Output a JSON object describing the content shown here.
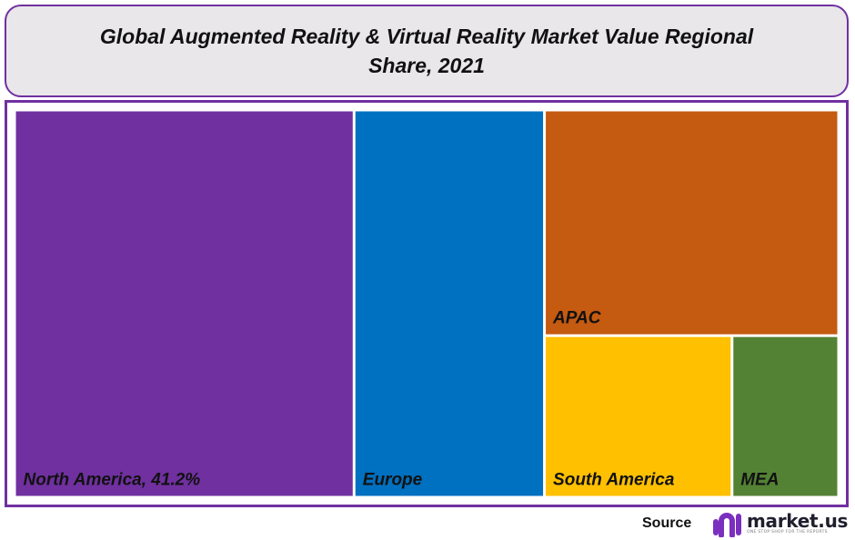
{
  "title": {
    "line1": "Global Augmented Reality & Virtual Reality  Market Value Regional",
    "line2": "Share, 2021"
  },
  "chart_data": {
    "type": "treemap",
    "title": "Global Augmented Reality & Virtual Reality  Market Value Regional Share, 2021",
    "unit": "%",
    "items": [
      {
        "name": "North America",
        "label": "North America, 41.2%",
        "value": 41.2,
        "color": "#7030a0"
      },
      {
        "name": "Europe",
        "label": "Europe",
        "value": 23.1,
        "color": "#0070c0"
      },
      {
        "name": "APAC",
        "label": "APAC",
        "value": 20.8,
        "color": "#c55a11"
      },
      {
        "name": "South America",
        "label": "South America",
        "value": 9.5,
        "color": "#ffc000"
      },
      {
        "name": "MEA",
        "label": "MEA",
        "value": 5.4,
        "color": "#548235"
      }
    ]
  },
  "footer": {
    "source_label": "Source",
    "brand": "market.us",
    "tagline": "ONE STOP SHOP FOR THE REPORTS"
  },
  "colors": {
    "frame": "#7030a0",
    "title_bg": "#e9e7ea",
    "logo_purple": "#7b2fbe"
  }
}
